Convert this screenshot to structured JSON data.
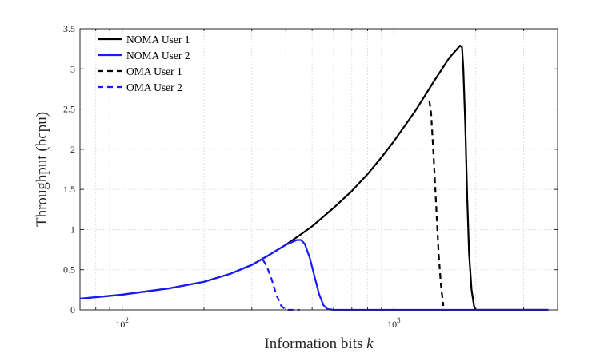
{
  "chart_data": {
    "type": "line",
    "title": "",
    "xlabel": "Information bits k",
    "xlabel_main": "Information bits ",
    "xlabel_var": "k",
    "ylabel": "Throughput (bcpu)",
    "xscale": "log",
    "xlim": [
      70,
      4000
    ],
    "ylim": [
      0,
      3.5
    ],
    "grid": true,
    "legend_position": "top-left",
    "y_ticks": [
      "0",
      "0.5",
      "1",
      "1.5",
      "2",
      "2.5",
      "3",
      "3.5"
    ],
    "x_tick_labels": [
      {
        "value": 100,
        "base": "10",
        "exp": "2"
      },
      {
        "value": 1000,
        "base": "10",
        "exp": "3"
      }
    ],
    "series": [
      {
        "name": "NOMA User 1",
        "color": "#000000",
        "dash": "solid",
        "points": [
          [
            70,
            0.14
          ],
          [
            100,
            0.19
          ],
          [
            150,
            0.27
          ],
          [
            200,
            0.35
          ],
          [
            250,
            0.45
          ],
          [
            300,
            0.56
          ],
          [
            350,
            0.69
          ],
          [
            400,
            0.81
          ],
          [
            450,
            0.93
          ],
          [
            500,
            1.04
          ],
          [
            600,
            1.27
          ],
          [
            700,
            1.48
          ],
          [
            800,
            1.69
          ],
          [
            900,
            1.9
          ],
          [
            1000,
            2.1
          ],
          [
            1200,
            2.48
          ],
          [
            1400,
            2.84
          ],
          [
            1600,
            3.14
          ],
          [
            1700,
            3.24
          ],
          [
            1750,
            3.29
          ],
          [
            1780,
            3.27
          ],
          [
            1800,
            3.0
          ],
          [
            1830,
            2.3
          ],
          [
            1860,
            1.4
          ],
          [
            1890,
            0.7
          ],
          [
            1930,
            0.25
          ],
          [
            1970,
            0.05
          ],
          [
            2000,
            0.0
          ],
          [
            3700,
            0.0
          ]
        ]
      },
      {
        "name": "NOMA User 2",
        "color": "#1a1aff",
        "dash": "solid",
        "points": [
          [
            70,
            0.14
          ],
          [
            100,
            0.19
          ],
          [
            150,
            0.27
          ],
          [
            200,
            0.35
          ],
          [
            250,
            0.45
          ],
          [
            300,
            0.56
          ],
          [
            350,
            0.69
          ],
          [
            400,
            0.81
          ],
          [
            440,
            0.87
          ],
          [
            455,
            0.87
          ],
          [
            470,
            0.82
          ],
          [
            490,
            0.65
          ],
          [
            510,
            0.42
          ],
          [
            530,
            0.2
          ],
          [
            550,
            0.06
          ],
          [
            570,
            0.01
          ],
          [
            600,
            0.0
          ],
          [
            3700,
            0.0
          ]
        ]
      },
      {
        "name": "OMA User 1",
        "color": "#000000",
        "dash": "dashed",
        "points": [
          [
            1350,
            2.6
          ],
          [
            1370,
            2.45
          ],
          [
            1400,
            1.9
          ],
          [
            1430,
            1.3
          ],
          [
            1460,
            0.7
          ],
          [
            1490,
            0.3
          ],
          [
            1520,
            0.05
          ]
        ]
      },
      {
        "name": "OMA User 2",
        "color": "#1a1aff",
        "dash": "dashed",
        "points": [
          [
            330,
            0.62
          ],
          [
            340,
            0.55
          ],
          [
            355,
            0.38
          ],
          [
            370,
            0.18
          ],
          [
            385,
            0.05
          ],
          [
            400,
            0.0
          ],
          [
            450,
            0.0
          ]
        ]
      }
    ]
  }
}
